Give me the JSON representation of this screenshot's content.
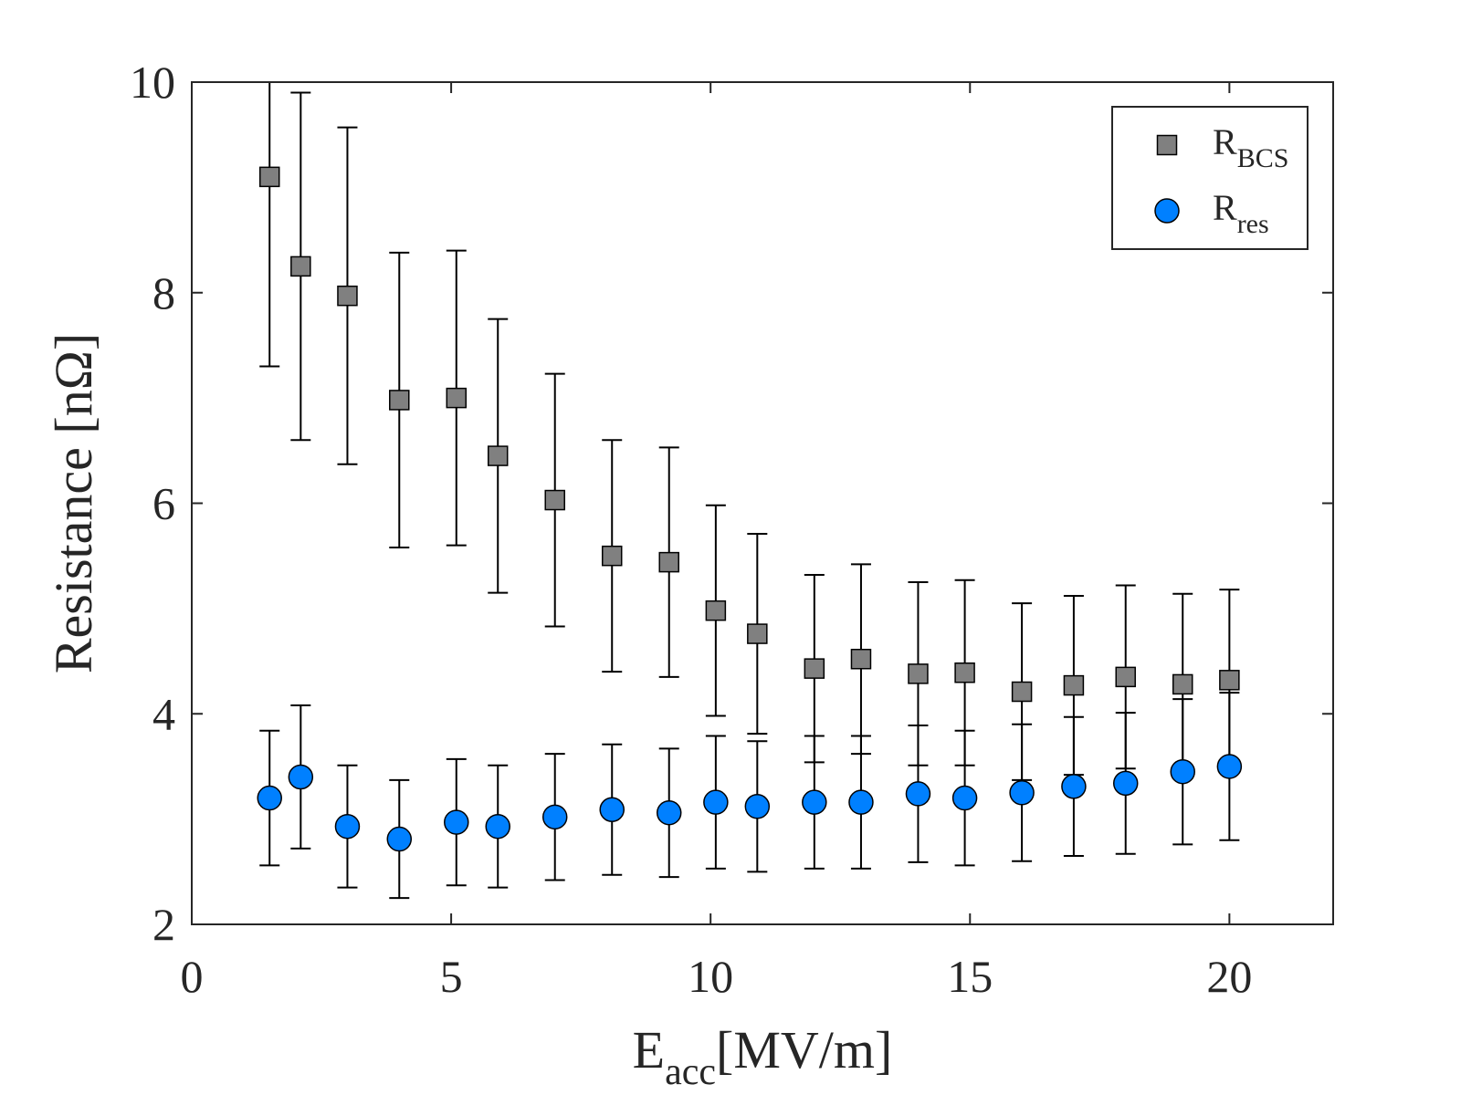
{
  "chart_data": {
    "type": "scatter",
    "xlabel": "E",
    "xlabel_sub": "acc",
    "xlabel_unit": "[MV/m]",
    "ylabel": "Resistance [nΩ]",
    "xlim": [
      0,
      22
    ],
    "ylim": [
      2,
      10
    ],
    "xticks": [
      0,
      5,
      10,
      15,
      20
    ],
    "yticks": [
      2,
      4,
      6,
      8,
      10
    ],
    "legend_position": "top-right",
    "grid": false,
    "series": [
      {
        "name": "R",
        "name_sub": "BCS",
        "marker": "square",
        "color": "#808080",
        "x": [
          1.5,
          2.1,
          3.0,
          4.0,
          5.1,
          5.9,
          7.0,
          8.1,
          9.2,
          10.1,
          10.9,
          12.0,
          12.9,
          14.0,
          14.9,
          16.0,
          17.0,
          18.0,
          19.1,
          20.0
        ],
        "y": [
          9.1,
          8.25,
          7.97,
          6.98,
          7.0,
          6.45,
          6.03,
          5.5,
          5.44,
          4.98,
          4.76,
          4.43,
          4.52,
          4.38,
          4.39,
          4.21,
          4.27,
          4.35,
          4.28,
          4.32
        ],
        "err": [
          1.8,
          1.65,
          1.6,
          1.4,
          1.4,
          1.3,
          1.2,
          1.1,
          1.09,
          1.0,
          0.95,
          0.89,
          0.9,
          0.87,
          0.88,
          0.84,
          0.85,
          0.87,
          0.86,
          0.86
        ]
      },
      {
        "name": "R",
        "name_sub": "res",
        "marker": "circle",
        "color": "#0080ff",
        "x": [
          1.5,
          2.1,
          3.0,
          4.0,
          5.1,
          5.9,
          7.0,
          8.1,
          9.2,
          10.1,
          10.9,
          12.0,
          12.9,
          14.0,
          14.9,
          16.0,
          17.0,
          18.0,
          19.1,
          20.0
        ],
        "y": [
          3.2,
          3.4,
          2.93,
          2.81,
          2.97,
          2.93,
          3.02,
          3.09,
          3.06,
          3.16,
          3.12,
          3.16,
          3.16,
          3.24,
          3.2,
          3.25,
          3.31,
          3.34,
          3.45,
          3.5
        ],
        "err": [
          0.64,
          0.68,
          0.58,
          0.56,
          0.6,
          0.58,
          0.6,
          0.62,
          0.61,
          0.63,
          0.62,
          0.63,
          0.63,
          0.65,
          0.64,
          0.65,
          0.66,
          0.67,
          0.69,
          0.7
        ]
      }
    ]
  }
}
